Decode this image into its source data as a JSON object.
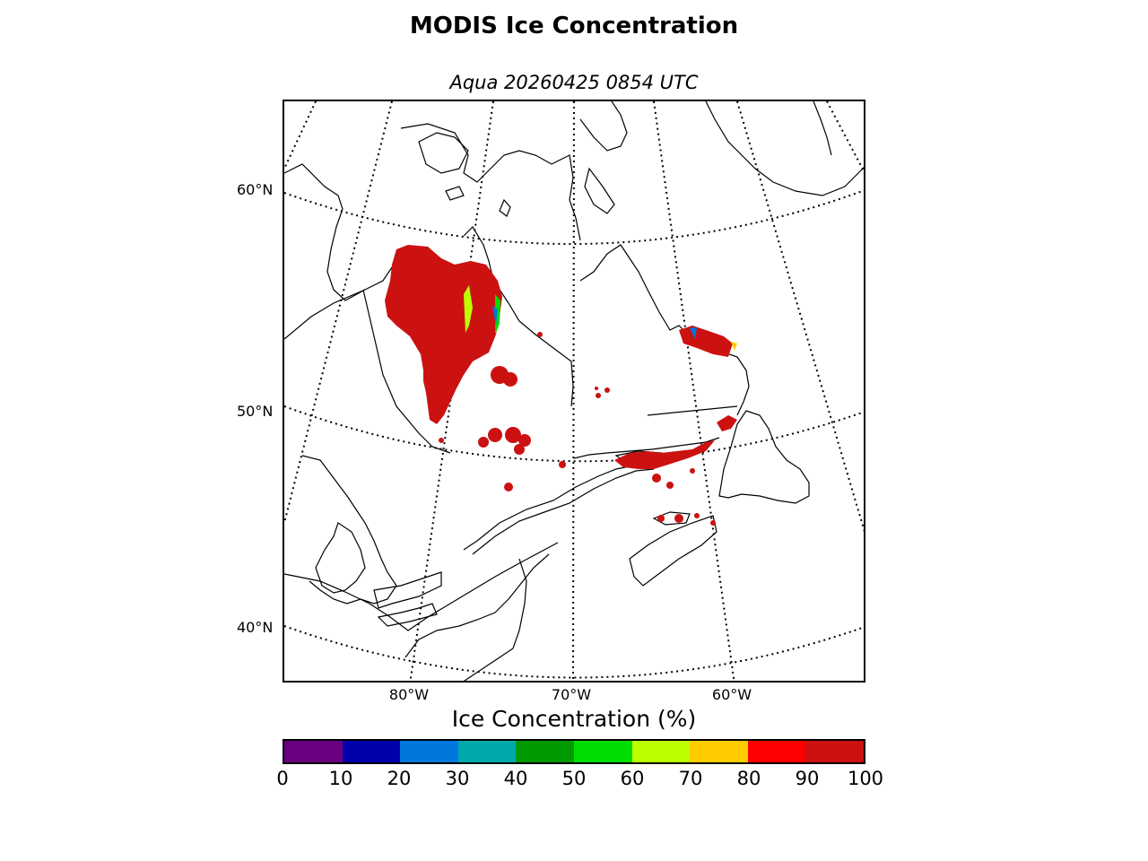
{
  "title": "MODIS Ice Concentration",
  "subtitle": "Aqua 20260425 0854 UTC",
  "map": {
    "lat_labels": [
      "60°N",
      "50°N",
      "40°N"
    ],
    "lon_labels": [
      "80°W",
      "70°W",
      "60°W"
    ],
    "ice_color": "#cc1111",
    "coast_color": "#000000",
    "graticule_style": "dotted"
  },
  "colorbar": {
    "label": "Ice Concentration (%)",
    "ticks": [
      "0",
      "10",
      "20",
      "30",
      "40",
      "50",
      "60",
      "70",
      "80",
      "90",
      "100"
    ],
    "colors": [
      "#6a0080",
      "#0000aa",
      "#0077dd",
      "#00aaaa",
      "#009900",
      "#00dd00",
      "#bbff00",
      "#ffcc00",
      "#ff0000",
      "#cc1111"
    ]
  }
}
